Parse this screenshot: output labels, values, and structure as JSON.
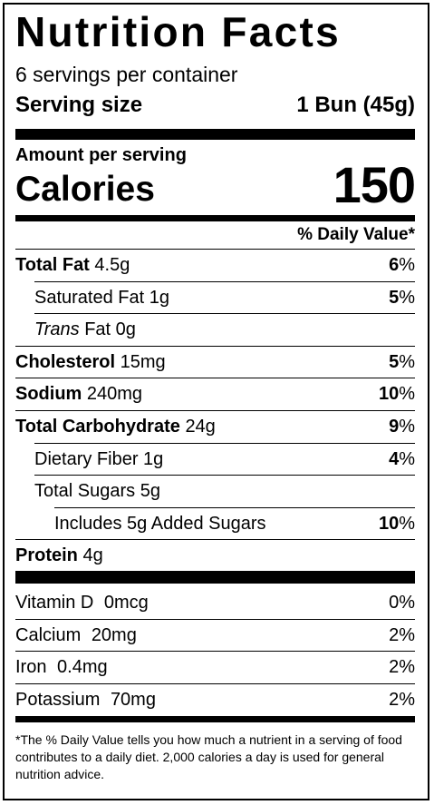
{
  "title": "Nutrition Facts",
  "servings_per_container": "6 servings per container",
  "serving_size": {
    "label": "Serving size",
    "value": "1 Bun (45g)"
  },
  "amount_per_serving": "Amount per serving",
  "calories": {
    "label": "Calories",
    "value": "150"
  },
  "daily_value_header": "% Daily Value*",
  "nutrients": [
    {
      "name": "Total Fat",
      "amount": "4.5g",
      "dv": "6",
      "bold": true,
      "indent": 0
    },
    {
      "name": "Saturated Fat",
      "amount": "1g",
      "dv": "5",
      "bold": false,
      "indent": 1
    },
    {
      "name": "Trans",
      "name_suffix": "Fat",
      "amount": "0g",
      "dv": "",
      "bold": false,
      "indent": 1,
      "italic_prefix": true
    },
    {
      "name": "Cholesterol",
      "amount": "15mg",
      "dv": "5",
      "bold": true,
      "indent": 0
    },
    {
      "name": "Sodium",
      "amount": "240mg",
      "dv": "10",
      "bold": true,
      "indent": 0
    },
    {
      "name": "Total Carbohydrate",
      "amount": "24g",
      "dv": "9",
      "bold": true,
      "indent": 0
    },
    {
      "name": "Dietary Fiber",
      "amount": "1g",
      "dv": "4",
      "bold": false,
      "indent": 1
    },
    {
      "name": "Total Sugars",
      "amount": "5g",
      "dv": "",
      "bold": false,
      "indent": 1
    },
    {
      "name": "Includes 5g Added Sugars",
      "amount": "",
      "dv": "10",
      "bold": false,
      "indent": 2
    },
    {
      "name": "Protein",
      "amount": "4g",
      "dv": "",
      "bold": true,
      "indent": 0
    }
  ],
  "vitamins": [
    {
      "name": "Vitamin D",
      "amount": "0mcg",
      "dv": "0%"
    },
    {
      "name": "Calcium",
      "amount": "20mg",
      "dv": "2%"
    },
    {
      "name": "Iron",
      "amount": "0.4mg",
      "dv": "2%"
    },
    {
      "name": "Potassium",
      "amount": "70mg",
      "dv": "2%"
    }
  ],
  "pct_sign": "%",
  "footnote": "*The % Daily Value tells you how much a nutrient in a serving of food contributes to a daily diet. 2,000 calories a day is used for general nutrition advice."
}
